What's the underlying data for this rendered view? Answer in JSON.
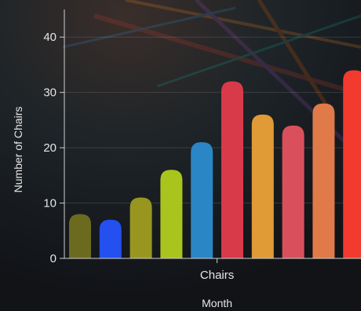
{
  "chart_data": {
    "type": "bar",
    "categories": [
      "Chairs"
    ],
    "series": [
      {
        "values": [
          8
        ]
      },
      {
        "values": [
          7
        ]
      },
      {
        "values": [
          11
        ]
      },
      {
        "values": [
          16
        ]
      },
      {
        "values": [
          21
        ]
      },
      {
        "values": [
          32
        ]
      },
      {
        "values": [
          26
        ]
      },
      {
        "values": [
          24
        ]
      },
      {
        "values": [
          28
        ]
      },
      {
        "values": [
          34
        ]
      }
    ],
    "colors": [
      "#6b6a1e",
      "#2450f0",
      "#98961e",
      "#a9c41d",
      "#2a86c4",
      "#d83a4a",
      "#e09a36",
      "#d9505c",
      "#e07a48",
      "#f23a2e"
    ],
    "xlabel": "Month",
    "ylabel": "Number of Chairs",
    "ylim": [
      0,
      45
    ],
    "yticks": [
      0,
      10,
      20,
      30,
      40
    ],
    "grid": true,
    "legend": "none"
  }
}
